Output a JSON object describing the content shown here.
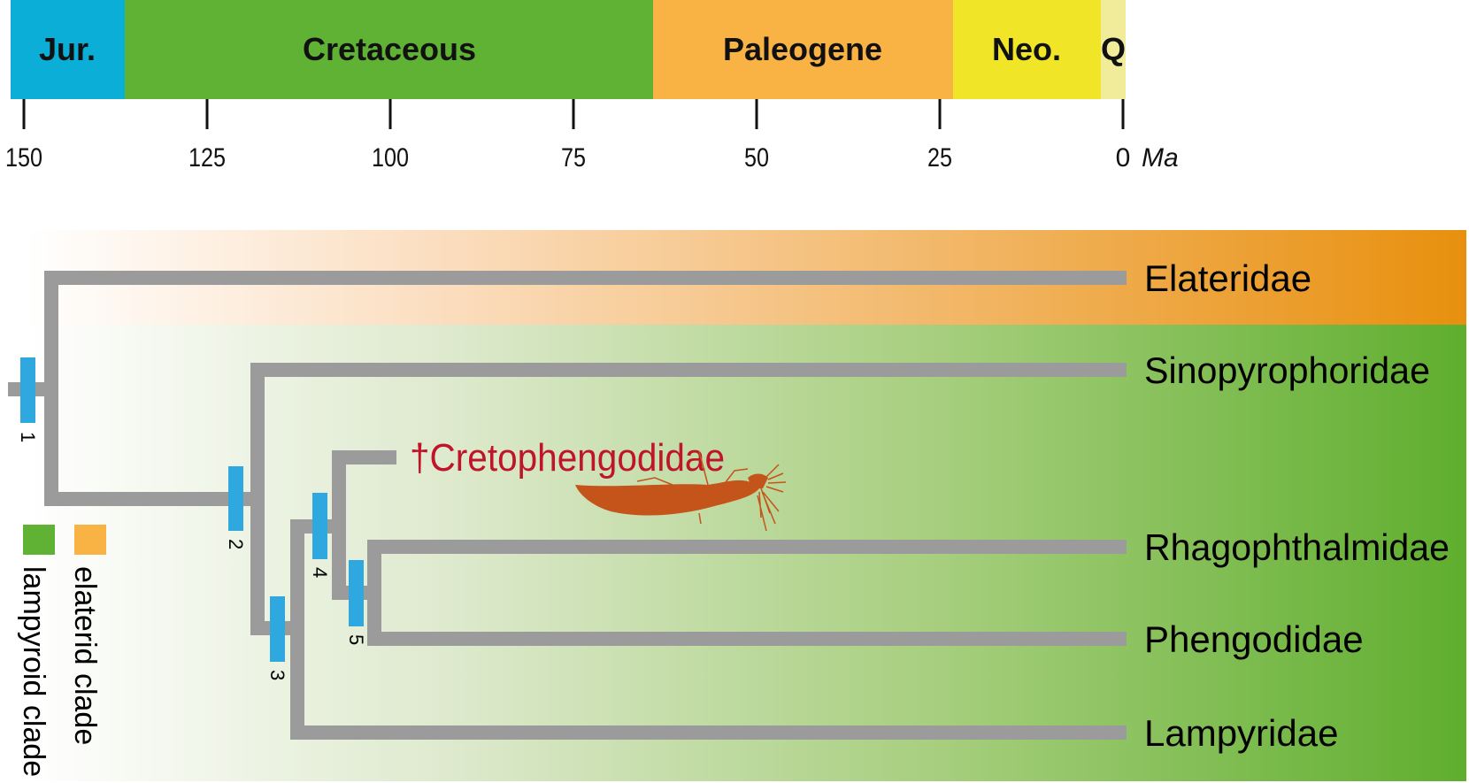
{
  "timescale": {
    "unit": "Ma",
    "periods": [
      {
        "label": "Jur.",
        "color": "#0aaed6"
      },
      {
        "label": "Cretaceous",
        "color": "#5fb233"
      },
      {
        "label": "Paleogene",
        "color": "#f9b344"
      },
      {
        "label": "Neo.",
        "color": "#f0e526"
      },
      {
        "label": "Q",
        "color": "#f1ec9a"
      }
    ],
    "ticks": [
      "150",
      "125",
      "100",
      "75",
      "50",
      "25",
      "0"
    ]
  },
  "tree": {
    "taxa": {
      "elateridae": "Elateridae",
      "sinopyrophoridae": "Sinopyrophoridae",
      "cretophengodidae": "†Cretophengodidae",
      "rhagophthalmidae": "Rhagophthalmidae",
      "phengodidae": "Phengodidae",
      "lampyridae": "Lampyridae"
    },
    "nodes": [
      "1",
      "2",
      "3",
      "4",
      "5"
    ],
    "colors": {
      "branch": "#9b9b9b",
      "node_bar": "#2fa8e0",
      "fossil": "#c0142a",
      "beetle": "#c4541a"
    }
  },
  "legend": {
    "lampyroid": {
      "label": "lampyroid clade",
      "color": "#5fb233"
    },
    "elaterid": {
      "label": "elaterid clade",
      "color": "#f9b344"
    }
  }
}
